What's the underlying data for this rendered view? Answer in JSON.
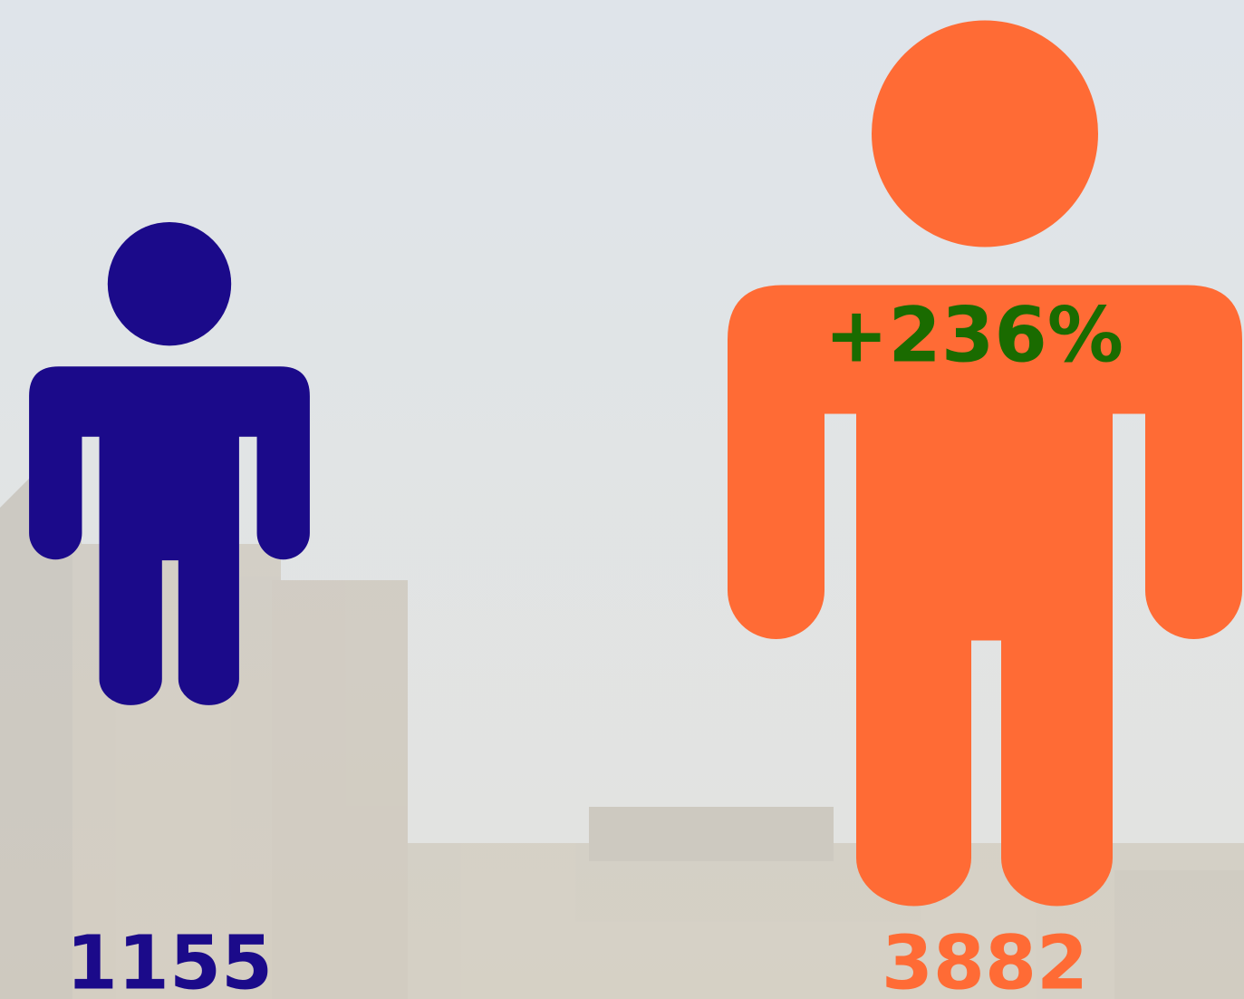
{
  "chart_data": {
    "type": "pictogram",
    "values": [
      1155,
      3882
    ],
    "colors": [
      "#1b0a8a",
      "#ff6b35"
    ],
    "annotation": "+236%",
    "annotation_color": "#1a6b00"
  }
}
